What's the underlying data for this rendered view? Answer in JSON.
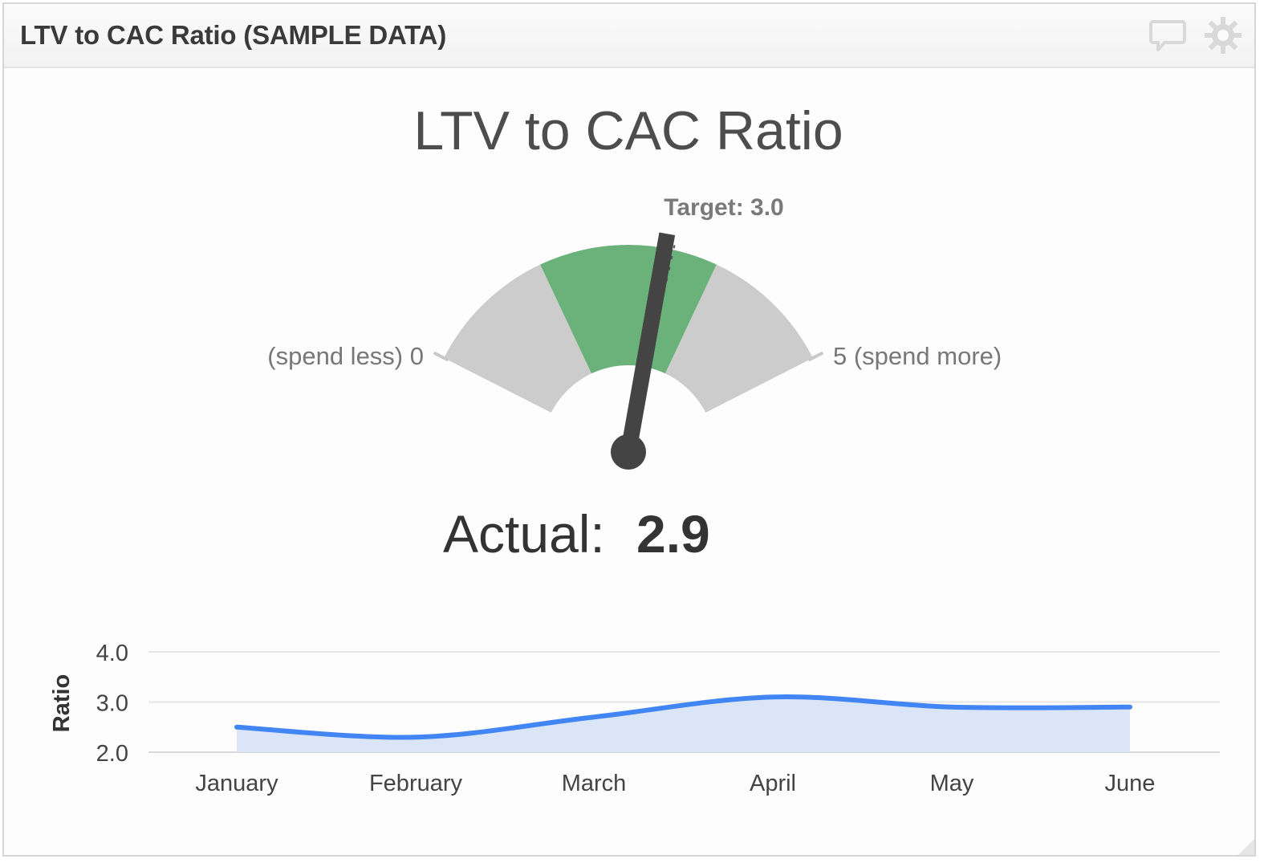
{
  "widget": {
    "header_title": "LTV to CAC Ratio (SAMPLE DATA)",
    "icons": {
      "comment": "comment-icon",
      "settings": "gear-icon"
    }
  },
  "gauge": {
    "title": "LTV to CAC Ratio",
    "min": 0,
    "max": 5,
    "min_label": "(spend less) 0",
    "max_label": "5 (spend more)",
    "target_label": "Target: 3.0",
    "target": 3.0,
    "actual_prefix": "Actual:",
    "actual_value": "2.9",
    "actual": 2.9,
    "bands": [
      {
        "from": 0,
        "to": 1.5,
        "color": "#cccccc"
      },
      {
        "from": 1.5,
        "to": 3.5,
        "color": "#6bb27a"
      },
      {
        "from": 3.5,
        "to": 5,
        "color": "#cccccc"
      }
    ],
    "needle_color": "#444444"
  },
  "chart_data": [
    {
      "type": "gauge",
      "title": "LTV to CAC Ratio",
      "range": [
        0,
        5
      ],
      "value": 2.9,
      "target": 3.0,
      "bands": [
        {
          "from": 0,
          "to": 1.5,
          "label": "gray"
        },
        {
          "from": 1.5,
          "to": 3.5,
          "label": "green"
        },
        {
          "from": 3.5,
          "to": 5,
          "label": "gray"
        }
      ],
      "annotations": [
        "(spend less) 0",
        "5 (spend more)",
        "Target: 3.0",
        "Actual: 2.9"
      ]
    },
    {
      "type": "area",
      "title": "",
      "xlabel": "",
      "ylabel": "Ratio",
      "categories": [
        "January",
        "February",
        "March",
        "April",
        "May",
        "June"
      ],
      "series": [
        {
          "name": "Ratio",
          "values": [
            2.5,
            2.3,
            2.7,
            3.1,
            2.9,
            2.9
          ],
          "color": "#4285f4",
          "fill": "#dae6f8"
        }
      ],
      "ylim": [
        2.0,
        4.0
      ],
      "yticks": [
        "2.0",
        "3.0",
        "4.0"
      ],
      "grid": true,
      "legend": "none"
    }
  ],
  "trend": {
    "ylabel": "Ratio",
    "yticks": [
      "4.0",
      "3.0",
      "2.0"
    ],
    "months": [
      "January",
      "February",
      "March",
      "April",
      "May",
      "June"
    ],
    "values": [
      2.5,
      2.3,
      2.7,
      3.1,
      2.9,
      2.9
    ],
    "line_color": "#4285f4",
    "fill_color": "#dae6f8"
  }
}
